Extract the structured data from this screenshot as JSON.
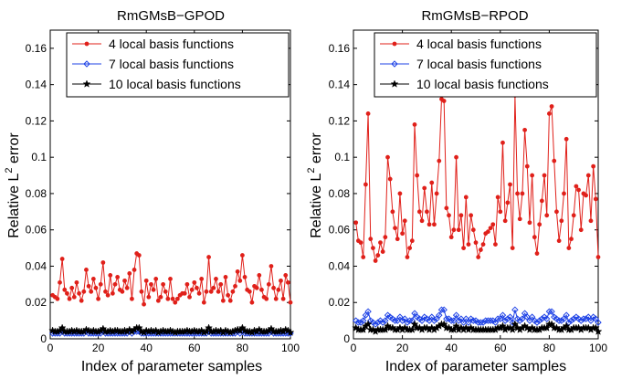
{
  "chart_data": [
    {
      "type": "line",
      "title": "RmGMsB−GPOD",
      "xlabel": "Index of parameter samples",
      "ylabel_prefix": "Relative L",
      "ylabel_sup": "2",
      "ylabel_suffix": " error",
      "xlim": [
        0,
        100
      ],
      "ylim": [
        0,
        0.17
      ],
      "xticks": [
        0,
        20,
        40,
        60,
        80,
        100
      ],
      "xtick_labels": [
        "0",
        "20",
        "40",
        "60",
        "80",
        "100"
      ],
      "yticks": [
        0,
        0.02,
        0.04,
        0.06,
        0.08,
        0.1,
        0.12,
        0.14,
        0.16
      ],
      "ytick_labels": [
        "0",
        "0.02",
        "0.04",
        "0.06",
        "0.08",
        "0.1",
        "0.12",
        "0.14",
        "0.16"
      ],
      "legend_position": "top-right",
      "x_start": 1,
      "series": [
        {
          "name": "4 local basis functions",
          "color": "#e0201a",
          "marker": "dot",
          "values": [
            0.024,
            0.023,
            0.022,
            0.031,
            0.044,
            0.027,
            0.025,
            0.022,
            0.028,
            0.023,
            0.031,
            0.025,
            0.021,
            0.026,
            0.038,
            0.029,
            0.026,
            0.033,
            0.028,
            0.022,
            0.03,
            0.042,
            0.026,
            0.024,
            0.035,
            0.025,
            0.03,
            0.034,
            0.027,
            0.026,
            0.032,
            0.028,
            0.036,
            0.022,
            0.038,
            0.047,
            0.046,
            0.026,
            0.019,
            0.032,
            0.023,
            0.03,
            0.027,
            0.033,
            0.021,
            0.023,
            0.03,
            0.026,
            0.022,
            0.033,
            0.022,
            0.02,
            0.022,
            0.024,
            0.025,
            0.025,
            0.03,
            0.023,
            0.027,
            0.031,
            0.028,
            0.025,
            0.033,
            0.02,
            0.026,
            0.045,
            0.026,
            0.028,
            0.033,
            0.026,
            0.03,
            0.021,
            0.034,
            0.024,
            0.021,
            0.026,
            0.029,
            0.037,
            0.032,
            0.046,
            0.034,
            0.027,
            0.026,
            0.02,
            0.029,
            0.028,
            0.035,
            0.027,
            0.023,
            0.022,
            0.03,
            0.04,
            0.028,
            0.022,
            0.027,
            0.032,
            0.022,
            0.035,
            0.031,
            0.02
          ]
        },
        {
          "name": "7 local basis functions",
          "color": "#1f43e6",
          "marker": "diamond",
          "values": [
            0.003,
            0.003,
            0.003,
            0.003,
            0.004,
            0.003,
            0.003,
            0.003,
            0.003,
            0.003,
            0.003,
            0.003,
            0.003,
            0.003,
            0.004,
            0.003,
            0.003,
            0.003,
            0.003,
            0.003,
            0.003,
            0.004,
            0.003,
            0.003,
            0.003,
            0.003,
            0.003,
            0.003,
            0.003,
            0.003,
            0.003,
            0.003,
            0.004,
            0.003,
            0.004,
            0.004,
            0.004,
            0.003,
            0.003,
            0.003,
            0.003,
            0.003,
            0.003,
            0.003,
            0.003,
            0.003,
            0.003,
            0.003,
            0.003,
            0.003,
            0.003,
            0.003,
            0.003,
            0.003,
            0.003,
            0.003,
            0.003,
            0.003,
            0.003,
            0.003,
            0.003,
            0.003,
            0.003,
            0.003,
            0.003,
            0.004,
            0.003,
            0.003,
            0.003,
            0.003,
            0.003,
            0.003,
            0.003,
            0.003,
            0.003,
            0.003,
            0.003,
            0.004,
            0.003,
            0.004,
            0.003,
            0.003,
            0.003,
            0.003,
            0.003,
            0.003,
            0.003,
            0.003,
            0.003,
            0.003,
            0.003,
            0.004,
            0.003,
            0.003,
            0.003,
            0.003,
            0.003,
            0.003,
            0.003,
            0.003
          ]
        },
        {
          "name": "10 local basis functions",
          "color": "#000000",
          "marker": "star",
          "values": [
            0.0045,
            0.004,
            0.004,
            0.0045,
            0.006,
            0.004,
            0.004,
            0.004,
            0.0045,
            0.004,
            0.0045,
            0.004,
            0.004,
            0.004,
            0.005,
            0.0045,
            0.004,
            0.0045,
            0.004,
            0.004,
            0.0045,
            0.0055,
            0.004,
            0.004,
            0.0045,
            0.004,
            0.0045,
            0.0045,
            0.004,
            0.004,
            0.0045,
            0.004,
            0.005,
            0.004,
            0.005,
            0.006,
            0.006,
            0.004,
            0.0035,
            0.0045,
            0.004,
            0.0045,
            0.004,
            0.0045,
            0.0035,
            0.004,
            0.0045,
            0.004,
            0.004,
            0.0045,
            0.004,
            0.0035,
            0.004,
            0.004,
            0.004,
            0.004,
            0.0045,
            0.004,
            0.004,
            0.0045,
            0.004,
            0.004,
            0.0045,
            0.0035,
            0.004,
            0.006,
            0.004,
            0.004,
            0.0045,
            0.004,
            0.0045,
            0.0035,
            0.0045,
            0.004,
            0.0035,
            0.004,
            0.0045,
            0.005,
            0.0045,
            0.006,
            0.0045,
            0.004,
            0.004,
            0.0035,
            0.0045,
            0.004,
            0.005,
            0.004,
            0.004,
            0.004,
            0.0045,
            0.0055,
            0.004,
            0.004,
            0.004,
            0.0045,
            0.004,
            0.005,
            0.0045,
            0.0035
          ]
        }
      ]
    },
    {
      "type": "line",
      "title": "RmGMsB−RPOD",
      "xlabel": "Index of parameter samples",
      "ylabel_prefix": "Relative L",
      "ylabel_sup": "2",
      "ylabel_suffix": " error",
      "xlim": [
        0,
        100
      ],
      "ylim": [
        0,
        0.17
      ],
      "xticks": [
        0,
        20,
        40,
        60,
        80,
        100
      ],
      "xtick_labels": [
        "0",
        "20",
        "40",
        "60",
        "80",
        "100"
      ],
      "yticks": [
        0,
        0.02,
        0.04,
        0.06,
        0.08,
        0.1,
        0.12,
        0.14,
        0.16
      ],
      "ytick_labels": [
        "0",
        "0.02",
        "0.04",
        "0.06",
        "0.08",
        "0.1",
        "0.12",
        "0.14",
        "0.16"
      ],
      "legend_position": "top-right",
      "x_start": 1,
      "series": [
        {
          "name": "4 local basis functions",
          "color": "#e0201a",
          "marker": "dot",
          "values": [
            0.064,
            0.054,
            0.053,
            0.045,
            0.085,
            0.124,
            0.055,
            0.05,
            0.043,
            0.046,
            0.053,
            0.048,
            0.056,
            0.1,
            0.088,
            0.07,
            0.061,
            0.055,
            0.08,
            0.058,
            0.065,
            0.045,
            0.05,
            0.054,
            0.118,
            0.09,
            0.07,
            0.065,
            0.083,
            0.07,
            0.063,
            0.086,
            0.063,
            0.08,
            0.098,
            0.132,
            0.131,
            0.072,
            0.068,
            0.056,
            0.06,
            0.1,
            0.06,
            0.068,
            0.05,
            0.078,
            0.052,
            0.068,
            0.06,
            0.053,
            0.045,
            0.049,
            0.052,
            0.058,
            0.059,
            0.061,
            0.063,
            0.052,
            0.078,
            0.07,
            0.108,
            0.065,
            0.075,
            0.085,
            0.05,
            0.134,
            0.08,
            0.066,
            0.08,
            0.115,
            0.095,
            0.064,
            0.09,
            0.056,
            0.047,
            0.063,
            0.076,
            0.09,
            0.068,
            0.124,
            0.128,
            0.098,
            0.07,
            0.054,
            0.065,
            0.08,
            0.11,
            0.05,
            0.055,
            0.068,
            0.084,
            0.082,
            0.06,
            0.08,
            0.079,
            0.09,
            0.065,
            0.095,
            0.077,
            0.045
          ]
        },
        {
          "name": "7 local basis functions",
          "color": "#1f43e6",
          "marker": "diamond",
          "values": [
            0.01,
            0.009,
            0.009,
            0.01,
            0.013,
            0.015,
            0.01,
            0.009,
            0.008,
            0.009,
            0.01,
            0.009,
            0.01,
            0.013,
            0.012,
            0.011,
            0.01,
            0.01,
            0.012,
            0.01,
            0.011,
            0.009,
            0.01,
            0.01,
            0.014,
            0.012,
            0.011,
            0.01,
            0.012,
            0.011,
            0.01,
            0.012,
            0.01,
            0.011,
            0.013,
            0.016,
            0.016,
            0.011,
            0.011,
            0.01,
            0.01,
            0.013,
            0.01,
            0.011,
            0.009,
            0.011,
            0.009,
            0.011,
            0.01,
            0.01,
            0.009,
            0.009,
            0.009,
            0.01,
            0.01,
            0.01,
            0.01,
            0.009,
            0.011,
            0.011,
            0.013,
            0.01,
            0.011,
            0.012,
            0.009,
            0.016,
            0.011,
            0.01,
            0.011,
            0.014,
            0.012,
            0.01,
            0.012,
            0.01,
            0.009,
            0.01,
            0.011,
            0.012,
            0.011,
            0.015,
            0.015,
            0.012,
            0.011,
            0.01,
            0.01,
            0.011,
            0.013,
            0.009,
            0.01,
            0.011,
            0.012,
            0.011,
            0.01,
            0.011,
            0.011,
            0.012,
            0.01,
            0.012,
            0.011,
            0.009
          ]
        },
        {
          "name": "10 local basis functions",
          "color": "#000000",
          "marker": "star",
          "values": [
            0.006,
            0.005,
            0.005,
            0.005,
            0.007,
            0.008,
            0.005,
            0.005,
            0.004,
            0.005,
            0.005,
            0.005,
            0.005,
            0.007,
            0.006,
            0.006,
            0.005,
            0.005,
            0.006,
            0.005,
            0.006,
            0.005,
            0.005,
            0.005,
            0.008,
            0.006,
            0.006,
            0.005,
            0.006,
            0.006,
            0.005,
            0.006,
            0.005,
            0.006,
            0.007,
            0.008,
            0.008,
            0.006,
            0.006,
            0.005,
            0.005,
            0.007,
            0.005,
            0.006,
            0.005,
            0.006,
            0.005,
            0.006,
            0.005,
            0.005,
            0.005,
            0.005,
            0.005,
            0.005,
            0.005,
            0.005,
            0.005,
            0.005,
            0.006,
            0.006,
            0.007,
            0.005,
            0.006,
            0.006,
            0.005,
            0.008,
            0.006,
            0.005,
            0.006,
            0.007,
            0.006,
            0.005,
            0.006,
            0.005,
            0.005,
            0.005,
            0.006,
            0.006,
            0.006,
            0.008,
            0.008,
            0.006,
            0.006,
            0.005,
            0.005,
            0.006,
            0.007,
            0.005,
            0.005,
            0.006,
            0.006,
            0.006,
            0.005,
            0.006,
            0.006,
            0.006,
            0.005,
            0.006,
            0.006,
            0.004
          ]
        }
      ]
    }
  ]
}
